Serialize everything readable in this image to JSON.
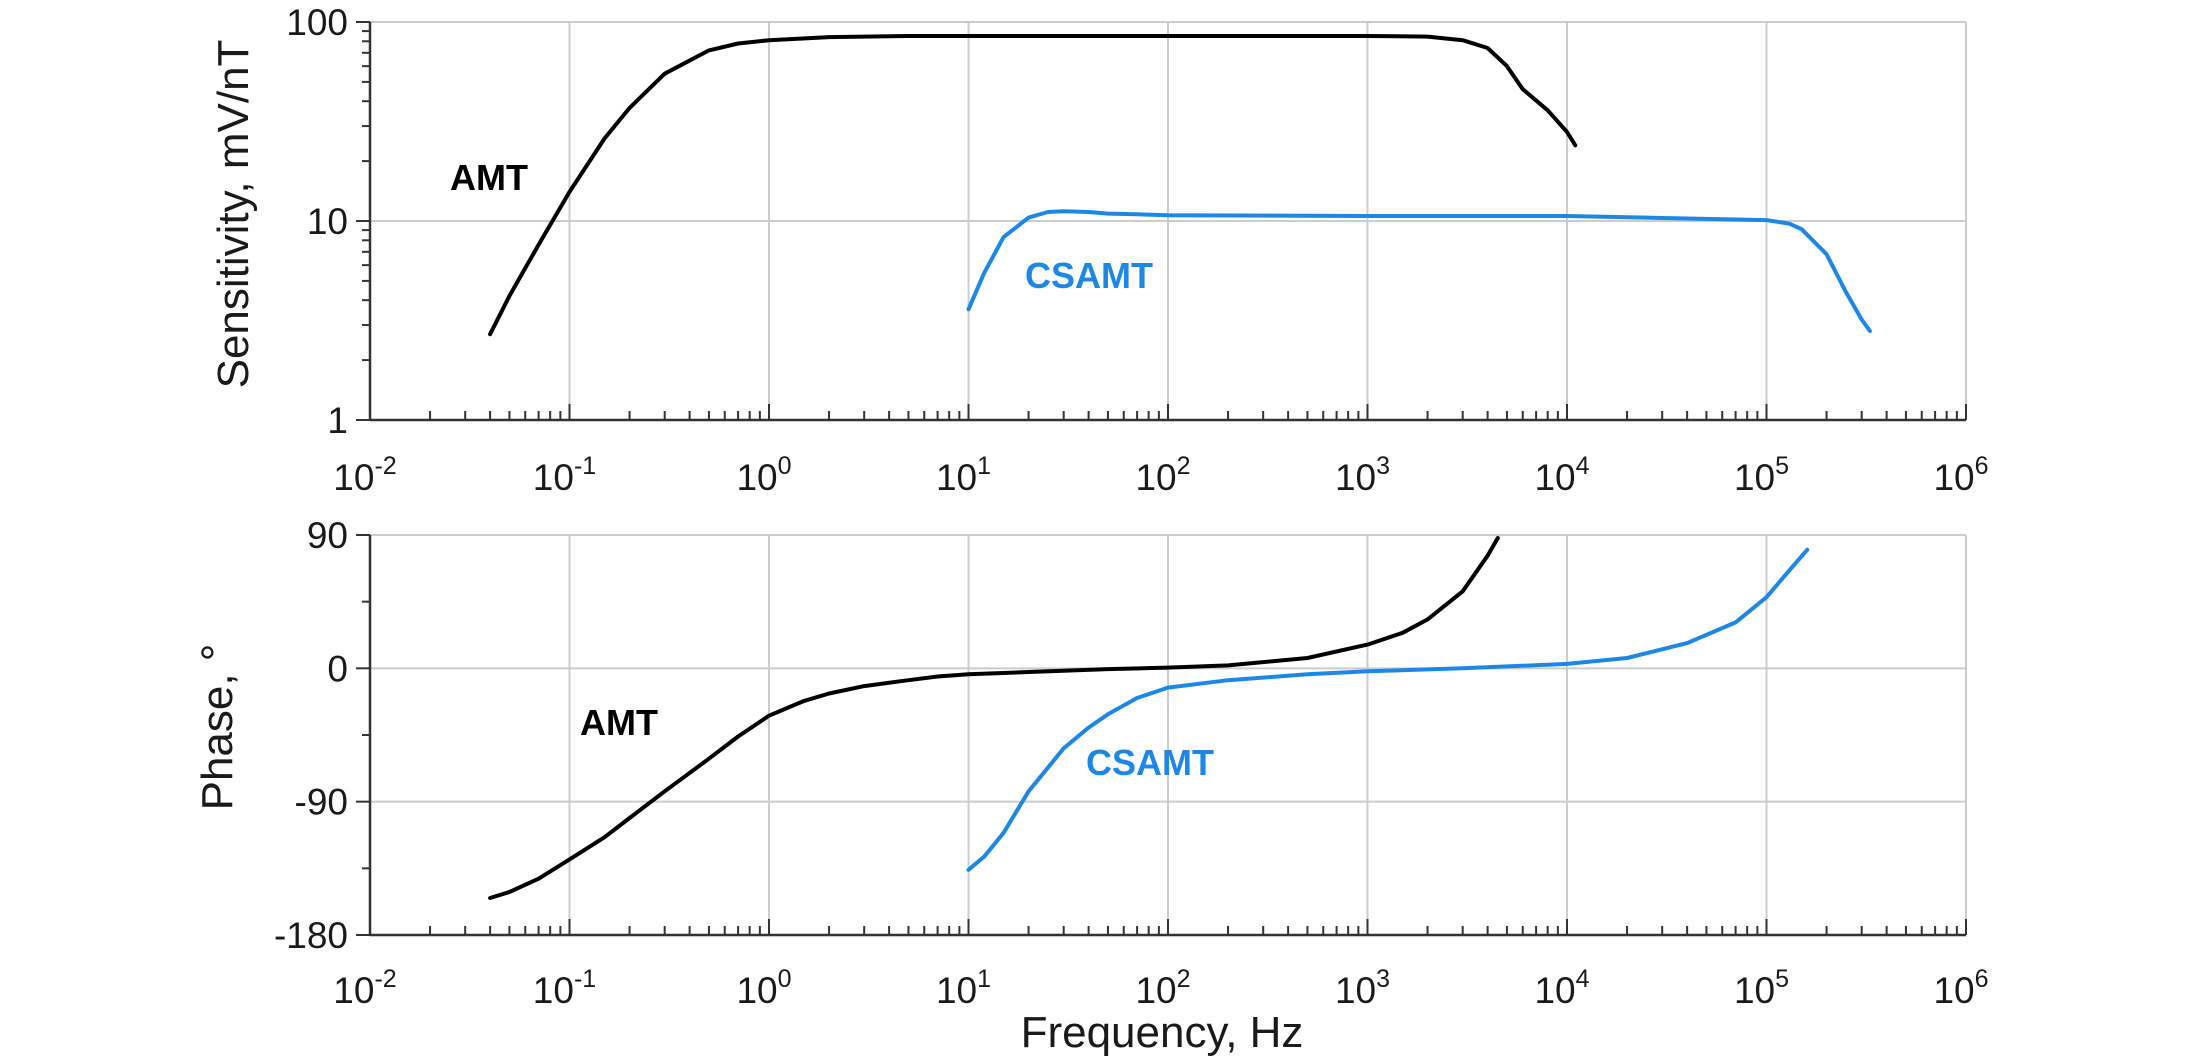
{
  "chart_data": [
    {
      "type": "line",
      "xlabel": "",
      "ylabel": "Sensitivity, mV/nT",
      "x_scale": "log",
      "y_scale": "log",
      "xlim": [
        0.01,
        1000000
      ],
      "ylim": [
        1,
        100
      ],
      "grid": true,
      "x_tick_labels": [
        {
          "base": "10",
          "exp": "-2"
        },
        {
          "base": "10",
          "exp": "-1"
        },
        {
          "base": "10",
          "exp": "0"
        },
        {
          "base": "10",
          "exp": "1"
        },
        {
          "base": "10",
          "exp": "2"
        },
        {
          "base": "10",
          "exp": "3"
        },
        {
          "base": "10",
          "exp": "4"
        },
        {
          "base": "10",
          "exp": "5"
        },
        {
          "base": "10",
          "exp": "6"
        }
      ],
      "y_tick_labels": [
        "1",
        "10",
        "100"
      ],
      "series": [
        {
          "name": "AMT",
          "color": "#000000",
          "x": [
            0.04,
            0.05,
            0.07,
            0.1,
            0.15,
            0.2,
            0.3,
            0.5,
            0.7,
            1,
            2,
            5,
            10,
            100,
            1000,
            2000,
            3000,
            4000,
            5000,
            6000,
            8000,
            10000,
            11000
          ],
          "y": [
            2.7,
            4.2,
            7.6,
            14,
            26,
            37,
            55,
            72,
            78,
            81,
            84,
            85,
            85,
            85,
            85,
            84.5,
            81,
            74,
            60,
            46,
            36,
            28,
            24
          ]
        },
        {
          "name": "CSAMT",
          "color": "#1e87e6",
          "x": [
            10,
            12,
            15,
            20,
            25,
            30,
            40,
            50,
            70,
            100,
            1000,
            10000,
            100000,
            130000,
            150000,
            200000,
            250000,
            300000,
            330000
          ],
          "y": [
            3.6,
            5.5,
            8.3,
            10.4,
            11.1,
            11.2,
            11.1,
            10.9,
            10.8,
            10.7,
            10.6,
            10.6,
            10.1,
            9.7,
            9.1,
            6.8,
            4.4,
            3.2,
            2.8
          ]
        }
      ]
    },
    {
      "type": "line",
      "xlabel": "Frequency, Hz",
      "ylabel": "Phase, °",
      "x_scale": "log",
      "y_scale": "linear",
      "xlim": [
        0.01,
        1000000
      ],
      "ylim": [
        -180,
        90
      ],
      "grid": true,
      "x_tick_labels": [
        {
          "base": "10",
          "exp": "-2"
        },
        {
          "base": "10",
          "exp": "-1"
        },
        {
          "base": "10",
          "exp": "0"
        },
        {
          "base": "10",
          "exp": "1"
        },
        {
          "base": "10",
          "exp": "2"
        },
        {
          "base": "10",
          "exp": "3"
        },
        {
          "base": "10",
          "exp": "4"
        },
        {
          "base": "10",
          "exp": "5"
        },
        {
          "base": "10",
          "exp": "6"
        }
      ],
      "y_tick_labels": [
        "90",
        "0",
        "-90",
        "-180"
      ],
      "series": [
        {
          "name": "AMT",
          "color": "#000000",
          "x": [
            0.04,
            0.05,
            0.07,
            0.1,
            0.15,
            0.2,
            0.3,
            0.5,
            0.7,
            1,
            1.5,
            2,
            3,
            5,
            7,
            10,
            20,
            50,
            100,
            200,
            500,
            1000,
            1500,
            2000,
            3000,
            4000,
            4500
          ],
          "y": [
            -155,
            -151,
            -142,
            -129,
            -114,
            -101,
            -83,
            -61,
            -46,
            -32,
            -22,
            -17,
            -12,
            -8,
            -5.5,
            -4,
            -2.5,
            -0.5,
            0.5,
            2,
            7,
            16,
            24,
            33,
            52,
            76,
            88
          ]
        },
        {
          "name": "CSAMT",
          "color": "#1e87e6",
          "x": [
            10,
            12,
            15,
            20,
            30,
            40,
            50,
            70,
            100,
            200,
            500,
            1000,
            3000,
            10000,
            20000,
            40000,
            70000,
            100000,
            130000,
            160000
          ],
          "y": [
            -136,
            -127,
            -111,
            -83,
            -54,
            -40,
            -31,
            -20,
            -13,
            -8,
            -4,
            -2,
            0,
            3,
            7,
            17,
            31,
            48,
            66,
            80
          ]
        }
      ]
    }
  ],
  "labels": {
    "top_amt": "AMT",
    "top_csamt": "CSAMT",
    "bottom_amt": "AMT",
    "bottom_csamt": "CSAMT"
  },
  "colors": {
    "amt": "#000000",
    "csamt": "#1e87e6",
    "grid": "#cccccc",
    "axis": "#333333"
  }
}
